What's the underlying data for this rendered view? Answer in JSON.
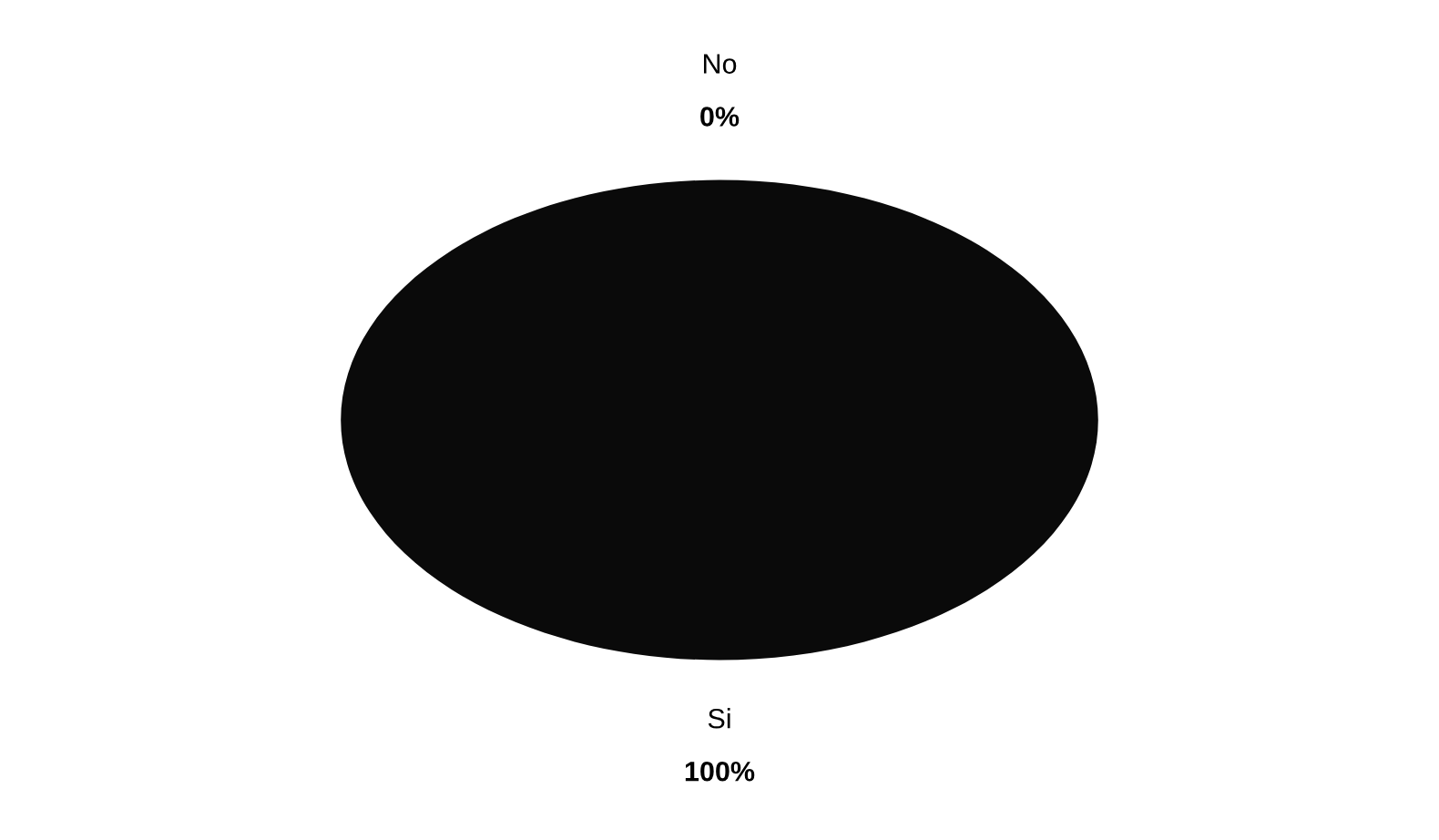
{
  "chart_data": {
    "type": "pie",
    "categories": [
      "No",
      "Si"
    ],
    "values": [
      0,
      100
    ],
    "value_labels": [
      "0%",
      "100%"
    ],
    "colors": [
      "#3a3a3a",
      "#0a0a0a"
    ]
  }
}
